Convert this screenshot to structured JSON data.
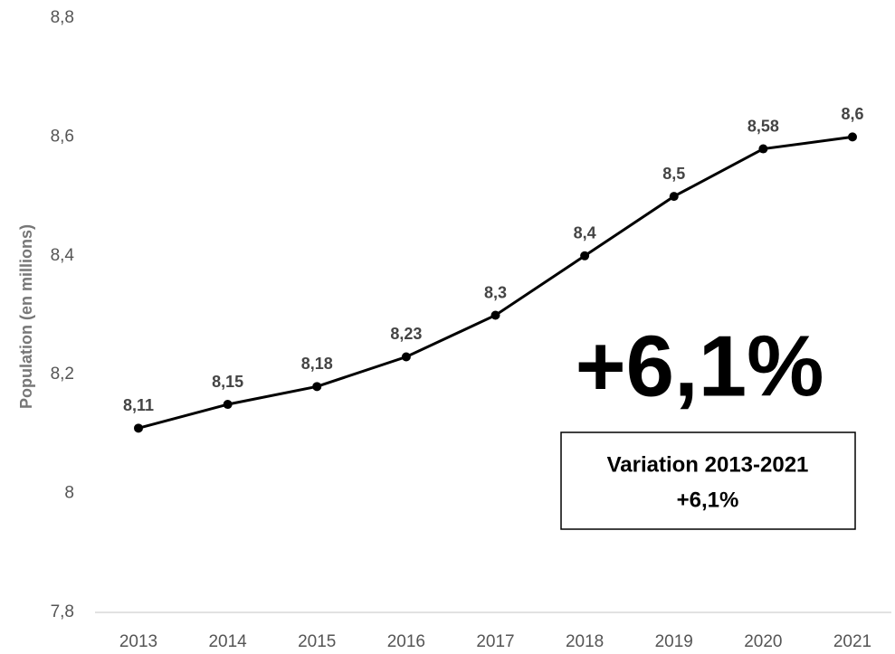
{
  "chart_data": {
    "type": "line",
    "y_label": "Population (en millions)",
    "categories": [
      "2013",
      "2014",
      "2015",
      "2016",
      "2017",
      "2018",
      "2019",
      "2020",
      "2021"
    ],
    "values": [
      8.11,
      8.15,
      8.18,
      8.23,
      8.3,
      8.4,
      8.5,
      8.58,
      8.6
    ],
    "value_labels": [
      "8,11",
      "8,15",
      "8,18",
      "8,23",
      "8,3",
      "8,4",
      "8,5",
      "8,58",
      "8,6"
    ],
    "color": "#000000",
    "ylim": [
      7.8,
      8.8
    ],
    "yticks": [
      {
        "value": 7.8,
        "label": "7,8"
      },
      8,
      {
        "value": 8.2,
        "label": "8,2"
      },
      {
        "value": 8.4,
        "label": "8,4"
      },
      {
        "value": 8.6,
        "label": "8,6"
      },
      {
        "value": 8.8,
        "label": "8,8"
      }
    ],
    "grid": false,
    "annotation": "+6,1%",
    "box_text": [
      "Variation 2013-2021",
      "+6,1%"
    ]
  }
}
